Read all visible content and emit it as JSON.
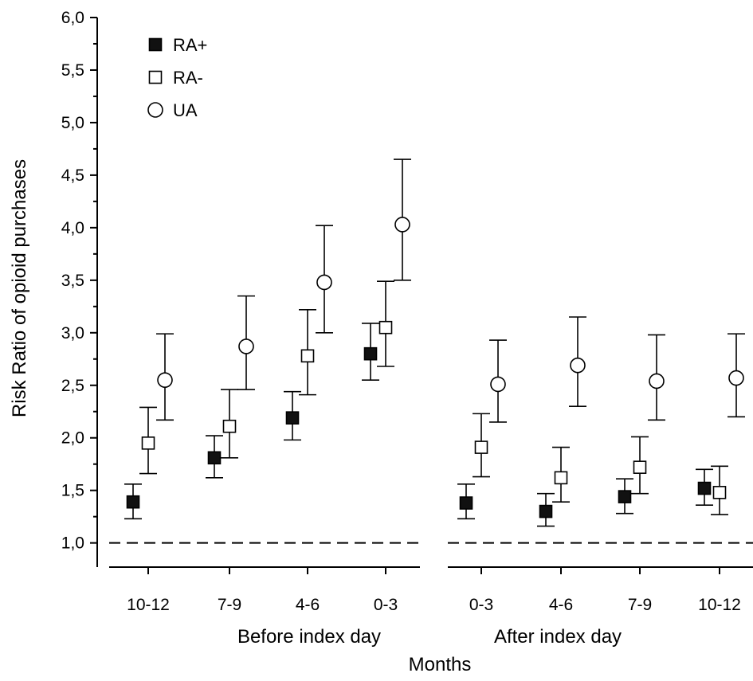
{
  "chart_data": {
    "type": "scatter",
    "ylabel": "Risk Ratio of opioid purchases",
    "xlabel": "Months",
    "ylim": [
      0.77,
      6.0
    ],
    "y_ticks": [
      "1,0",
      "1,5",
      "2,0",
      "2,5",
      "3,0",
      "3,5",
      "4,0",
      "4,5",
      "5,0",
      "5,5",
      "6,0"
    ],
    "reference_line": 1.0,
    "groups": [
      {
        "label": "Before index day",
        "categories": [
          "10-12",
          "7-9",
          "4-6",
          "0-3"
        ]
      },
      {
        "label": "After index day",
        "categories": [
          "0-3",
          "4-6",
          "7-9",
          "10-12"
        ]
      }
    ],
    "series": [
      {
        "name": "RA+",
        "marker": "filled-square",
        "values": [
          [
            1.39,
            1.81,
            2.19,
            2.8
          ],
          [
            1.38,
            1.3,
            1.44,
            1.52
          ]
        ],
        "lower": [
          [
            1.23,
            1.62,
            1.98,
            2.55
          ],
          [
            1.23,
            1.16,
            1.28,
            1.36
          ]
        ],
        "upper": [
          [
            1.56,
            2.02,
            2.44,
            3.09
          ],
          [
            1.56,
            1.47,
            1.61,
            1.7
          ]
        ]
      },
      {
        "name": "RA-",
        "marker": "open-square",
        "values": [
          [
            1.95,
            2.11,
            2.78,
            3.05
          ],
          [
            1.91,
            1.62,
            1.72,
            1.48
          ]
        ],
        "lower": [
          [
            1.66,
            1.81,
            2.41,
            2.68
          ],
          [
            1.63,
            1.39,
            1.47,
            1.27
          ]
        ],
        "upper": [
          [
            2.29,
            2.46,
            3.22,
            3.49
          ],
          [
            2.23,
            1.91,
            2.01,
            1.73
          ]
        ]
      },
      {
        "name": "UA",
        "marker": "open-circle",
        "values": [
          [
            2.55,
            2.87,
            3.48,
            4.03
          ],
          [
            2.51,
            2.69,
            2.54,
            2.57
          ]
        ],
        "lower": [
          [
            2.17,
            2.46,
            3.0,
            3.5
          ],
          [
            2.15,
            2.3,
            2.17,
            2.2
          ]
        ],
        "upper": [
          [
            2.99,
            3.35,
            4.02,
            4.65
          ],
          [
            2.93,
            3.15,
            2.98,
            2.99
          ]
        ]
      }
    ],
    "legend": {
      "placement": "top-left",
      "entries": [
        "RA+",
        "RA-",
        "UA"
      ]
    },
    "grid": false
  }
}
